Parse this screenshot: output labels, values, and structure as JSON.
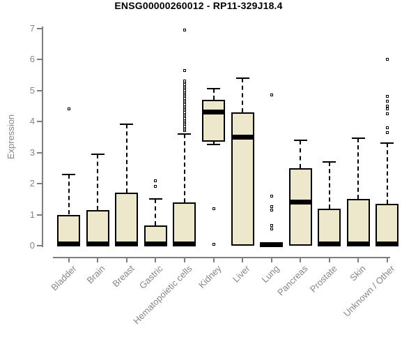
{
  "chart_data": {
    "type": "box",
    "title": "ENSG00000260012 - RP11-329J18.4",
    "ylabel": "Expression",
    "xlabel": "",
    "ylim": [
      0,
      7
    ],
    "yticks": [
      "0",
      "1",
      "2",
      "3",
      "4",
      "5",
      "6",
      "7"
    ],
    "grid": false,
    "legend": null,
    "colors": {
      "box_fill": "#EDE7CC",
      "box_border": "#000000",
      "median": "#000000",
      "axis": "#7e7e7e",
      "tick_text": "#868686",
      "title_text": "#000000",
      "background": "#ffffff"
    },
    "categories": [
      {
        "label": "Bladder",
        "low": 0,
        "q1": 0,
        "median": 0.05,
        "q3": 1.0,
        "high": 2.3,
        "outliers": [
          4.4
        ]
      },
      {
        "label": "Brain",
        "low": 0,
        "q1": 0,
        "median": 0.05,
        "q3": 1.15,
        "high": 2.95,
        "outliers": []
      },
      {
        "label": "Breast",
        "low": 0,
        "q1": 0,
        "median": 0.05,
        "q3": 1.7,
        "high": 3.9,
        "outliers": []
      },
      {
        "label": "Gastric",
        "low": 0,
        "q1": 0,
        "median": 0.05,
        "q3": 0.65,
        "high": 1.5,
        "outliers": [
          1.9,
          2.1
        ]
      },
      {
        "label": "Hematopoietic cells",
        "low": 0,
        "q1": 0,
        "median": 0.05,
        "q3": 1.4,
        "high": 3.6,
        "outliers": [
          3.7,
          3.75,
          3.8,
          3.85,
          3.9,
          3.95,
          4.0,
          4.05,
          4.1,
          4.15,
          4.2,
          4.25,
          4.3,
          4.35,
          4.4,
          4.45,
          4.5,
          4.55,
          4.6,
          4.65,
          4.7,
          4.75,
          4.8,
          4.85,
          4.9,
          4.95,
          5.0,
          5.05,
          5.1,
          5.15,
          5.2,
          5.25,
          5.3,
          5.65,
          6.95
        ]
      },
      {
        "label": "Kidney",
        "low": 3.25,
        "q1": 3.35,
        "median": 4.3,
        "q3": 4.7,
        "high": 5.05,
        "outliers": [
          0.05,
          1.2
        ]
      },
      {
        "label": "Liver",
        "low": 0,
        "q1": 0,
        "median": 3.5,
        "q3": 4.3,
        "high": 5.4,
        "outliers": []
      },
      {
        "label": "Lung",
        "low": 0,
        "q1": 0,
        "median": 0.03,
        "q3": 0.07,
        "high": 0.07,
        "outliers": [
          0.55,
          0.65,
          1.15,
          1.25,
          1.6,
          4.85
        ]
      },
      {
        "label": "Pancreas",
        "low": 0,
        "q1": 0,
        "median": 1.4,
        "q3": 2.5,
        "high": 3.4,
        "outliers": []
      },
      {
        "label": "Prostate",
        "low": 0,
        "q1": 0,
        "median": 0.05,
        "q3": 1.2,
        "high": 2.7,
        "outliers": []
      },
      {
        "label": "Skin",
        "low": 0,
        "q1": 0,
        "median": 0.05,
        "q3": 1.5,
        "high": 3.45,
        "outliers": []
      },
      {
        "label": "Unknown / Other",
        "low": 0,
        "q1": 0,
        "median": 0.05,
        "q3": 1.35,
        "high": 3.3,
        "outliers": [
          3.65,
          3.8,
          4.25,
          4.4,
          4.5,
          4.65,
          4.8,
          6.0
        ]
      }
    ]
  }
}
